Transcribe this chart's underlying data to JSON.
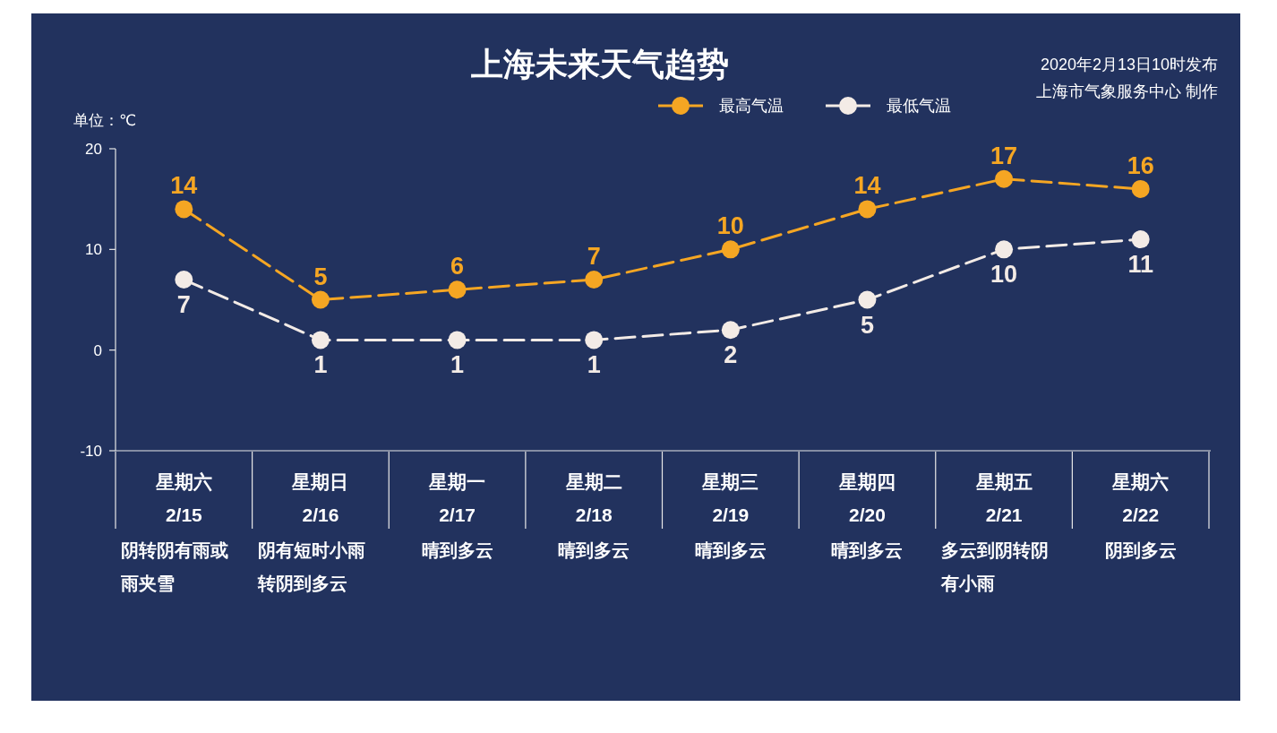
{
  "chart_data": {
    "type": "line",
    "title": "上海未来天气趋势",
    "ylabel": "单位：℃",
    "categories": [
      "星期六\n2/15",
      "星期日\n2/16",
      "星期一\n2/17",
      "星期二\n2/18",
      "星期三\n2/19",
      "星期四\n2/20",
      "星期五\n2/21",
      "星期六\n2/22"
    ],
    "series": [
      {
        "name": "最高气温",
        "color": "#f5a623",
        "values": [
          14,
          5,
          6,
          7,
          10,
          14,
          17,
          16
        ]
      },
      {
        "name": "最低气温",
        "color": "#f3ebe6",
        "values": [
          7,
          1,
          1,
          1,
          2,
          5,
          10,
          11
        ]
      }
    ],
    "ylim": [
      -10,
      20
    ],
    "yticks": [
      -10,
      0,
      10,
      20
    ],
    "data_labels": true,
    "legend": "top",
    "marker": "circle",
    "line_style": "dashed",
    "annotations": [
      "2020年2月13日10时发布",
      "上海市气象服务中心 制作",
      "阴转阴有雨或雨夹雪",
      "阴有短时小雨转阴到多云",
      "晴到多云",
      "晴到多云",
      "晴到多云",
      "晴到多云",
      "多云到阴转阴有小雨",
      "阴到多云"
    ]
  }
}
